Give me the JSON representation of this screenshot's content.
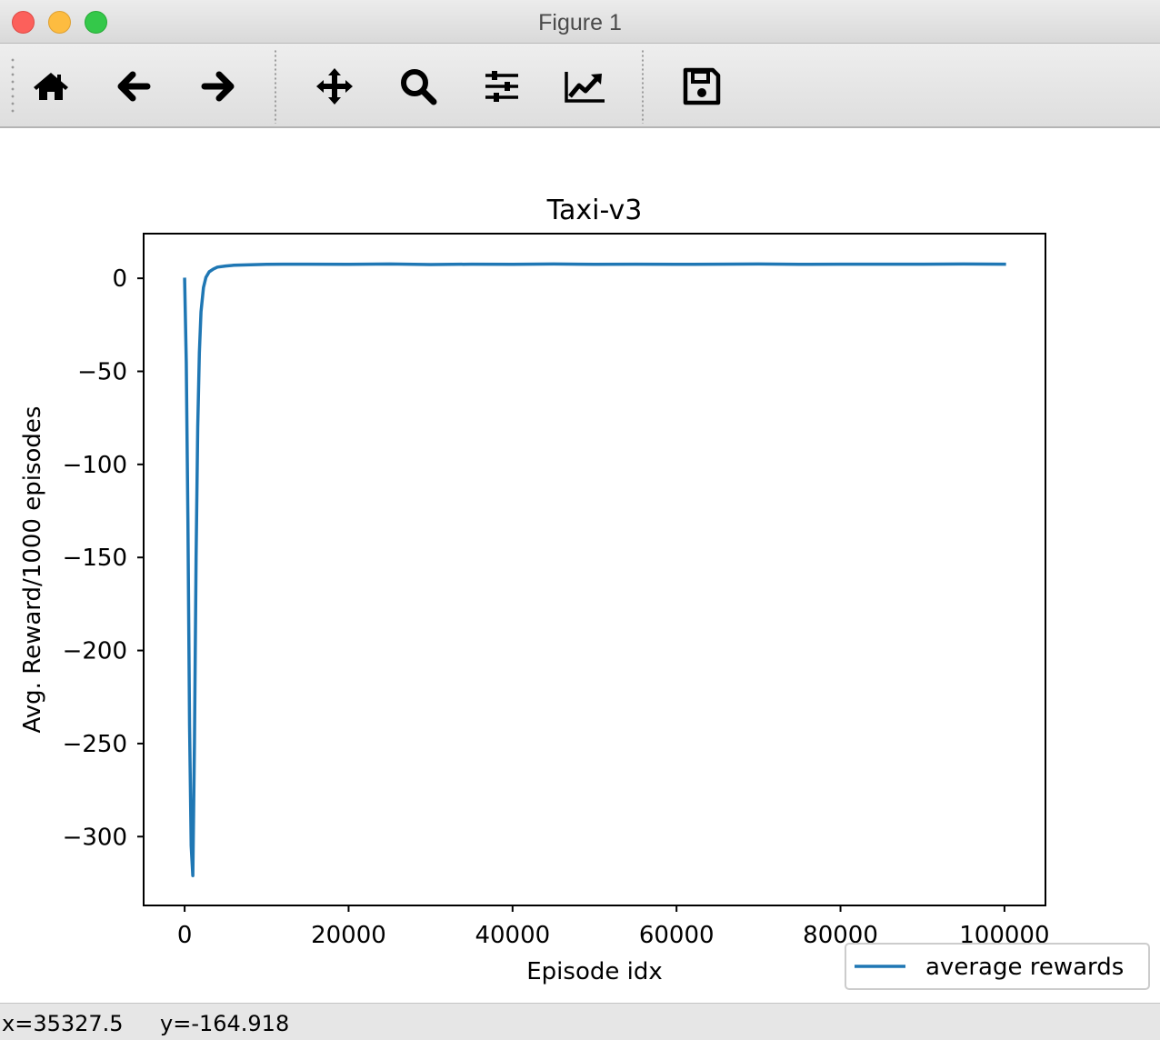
{
  "window": {
    "title": "Figure 1"
  },
  "toolbar": {
    "buttons": [
      {
        "name": "home",
        "icon": "home-icon"
      },
      {
        "name": "back",
        "icon": "arrow-left-icon"
      },
      {
        "name": "forward",
        "icon": "arrow-right-icon"
      },
      {
        "name": "pan",
        "icon": "move-icon"
      },
      {
        "name": "zoom",
        "icon": "magnifier-icon"
      },
      {
        "name": "configure-subplots",
        "icon": "sliders-icon"
      },
      {
        "name": "edit-axis",
        "icon": "line-chart-icon"
      },
      {
        "name": "save",
        "icon": "floppy-disk-icon"
      }
    ]
  },
  "status": {
    "x": "x=35327.5",
    "y": "y=-164.918"
  },
  "colors": {
    "series": "#1f77b4",
    "traffic_close": "#fc605b",
    "traffic_min": "#fdbc40",
    "traffic_max": "#34c84a"
  },
  "chart_data": {
    "type": "line",
    "title": "Taxi-v3",
    "xlabel": "Episode idx",
    "ylabel": "Avg. Reward/1000 episodes",
    "xlim": [
      -5000,
      105000
    ],
    "ylim": [
      -337,
      24
    ],
    "xticks": [
      0,
      20000,
      40000,
      60000,
      80000,
      100000
    ],
    "xtick_labels": [
      "0",
      "20000",
      "40000",
      "60000",
      "80000",
      "100000"
    ],
    "yticks": [
      0,
      -50,
      -100,
      -150,
      -200,
      -250,
      -300
    ],
    "ytick_labels": [
      "0",
      "−50",
      "−100",
      "−150",
      "−200",
      "−250",
      "−300"
    ],
    "grid": false,
    "legend": {
      "position": "below-right",
      "entries": [
        "average rewards"
      ]
    },
    "series": [
      {
        "name": "average rewards",
        "x": [
          0,
          200,
          400,
          600,
          800,
          1000,
          1200,
          1400,
          1600,
          1800,
          2000,
          2300,
          2600,
          3000,
          3500,
          4000,
          5000,
          6000,
          8000,
          10000,
          12000,
          15000,
          20000,
          25000,
          30000,
          35000,
          40000,
          45000,
          50000,
          55000,
          60000,
          65000,
          70000,
          75000,
          80000,
          85000,
          90000,
          95000,
          100000
        ],
        "y": [
          -0.5,
          -45,
          -130,
          -240,
          -305,
          -321,
          -250,
          -150,
          -80,
          -40,
          -18,
          -5,
          0.5,
          3.5,
          5,
          6,
          6.6,
          7,
          7.3,
          7.5,
          7.6,
          7.6,
          7.5,
          7.7,
          7.4,
          7.6,
          7.5,
          7.7,
          7.5,
          7.6,
          7.5,
          7.6,
          7.7,
          7.5,
          7.6,
          7.6,
          7.6,
          7.7,
          7.6
        ]
      }
    ]
  }
}
